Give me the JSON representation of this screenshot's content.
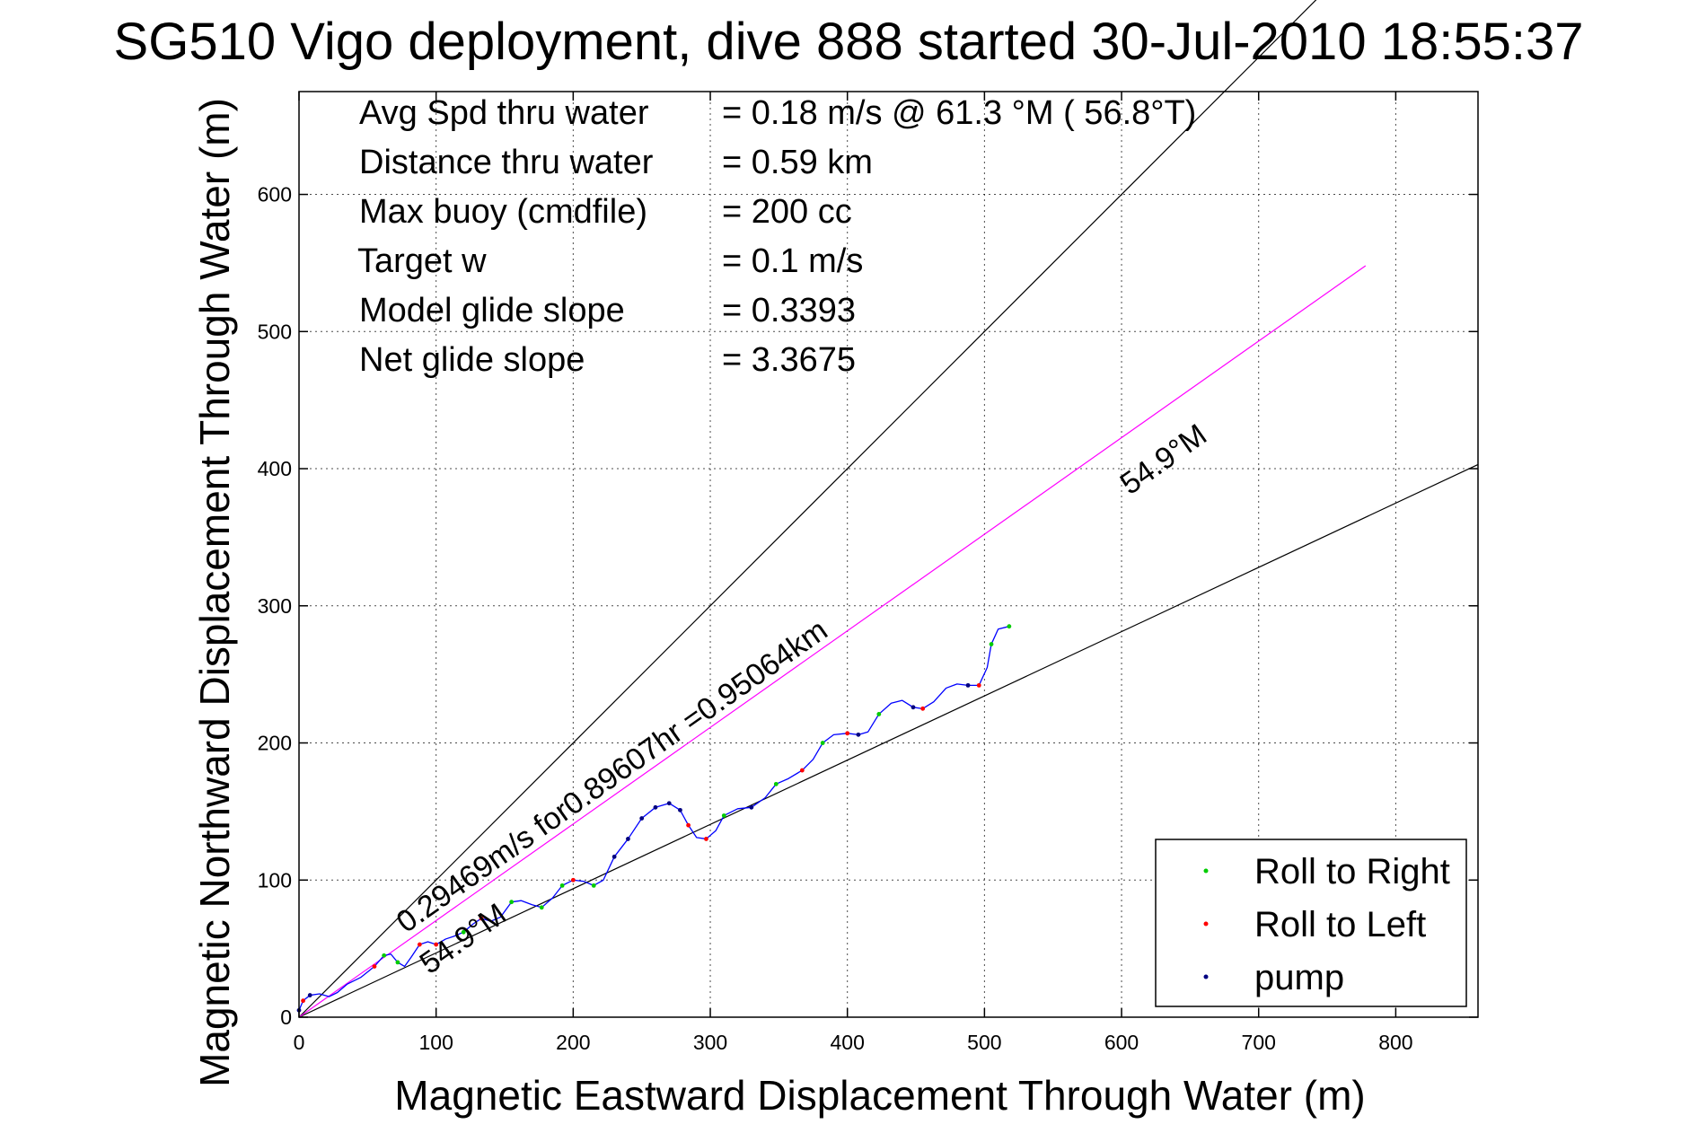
{
  "chart_data": {
    "type": "line",
    "title": "SG510 Vigo deployment, dive 888 started 30-Jul-2010 18:55:37",
    "xlabel": "Magnetic Eastward Displacement Through Water (m)",
    "ylabel": "Magnetic Northward Displacement Through Water (m)",
    "xlim": [
      0,
      860
    ],
    "ylim": [
      0,
      675
    ],
    "xticks": [
      0,
      100,
      200,
      300,
      400,
      500,
      600,
      700,
      800
    ],
    "yticks": [
      0,
      100,
      200,
      300,
      400,
      500,
      600
    ],
    "grid": true,
    "legend_position": "bottom-right",
    "legend": [
      {
        "label": "Roll to Right",
        "color": "#00cc00"
      },
      {
        "label": "Roll to Left",
        "color": "#ff0000"
      },
      {
        "label": "pump",
        "color": "#000080"
      }
    ],
    "stats": [
      {
        "label": "Avg Spd thru water",
        "value": "=  0.18 m/s @  61.3 °M ( 56.8°T)"
      },
      {
        "label": "Distance thru water",
        "value": "=  0.59 km"
      },
      {
        "label": "Max buoy (cmdfile)",
        "value": "= 200 cc"
      },
      {
        "label": "Target w",
        "value": "= 0.1 m/s"
      },
      {
        "label": "Model glide slope",
        "value": "= 0.3393"
      },
      {
        "label": "Net glide slope",
        "value": "= 3.3675"
      }
    ],
    "annotations": {
      "current_label": "0.29469m/s for0.89607hr =0.95064km",
      "heading_upper": "54.9°M",
      "heading_lower": "54.9°M"
    },
    "reference_lines": [
      {
        "name": "upper-bound",
        "color": "#000000",
        "points": [
          [
            0,
            0
          ],
          [
            860,
            860
          ]
        ]
      },
      {
        "name": "lower-bound",
        "color": "#000000",
        "points": [
          [
            0,
            0
          ],
          [
            860,
            403
          ]
        ]
      },
      {
        "name": "current",
        "color": "#ff00ff",
        "points": [
          [
            0,
            0
          ],
          [
            778,
            548
          ]
        ]
      }
    ],
    "track": {
      "color": "#0000ff",
      "points": [
        [
          0,
          5
        ],
        [
          3,
          12
        ],
        [
          8,
          16
        ],
        [
          15,
          17
        ],
        [
          22,
          15
        ],
        [
          28,
          18
        ],
        [
          35,
          24
        ],
        [
          45,
          29
        ],
        [
          55,
          37
        ],
        [
          62,
          45
        ],
        [
          67,
          46
        ],
        [
          72,
          40
        ],
        [
          77,
          37
        ],
        [
          82,
          44
        ],
        [
          88,
          53
        ],
        [
          94,
          55
        ],
        [
          100,
          53
        ],
        [
          107,
          57
        ],
        [
          113,
          59
        ],
        [
          120,
          62
        ],
        [
          127,
          68
        ],
        [
          133,
          72
        ],
        [
          140,
          70
        ],
        [
          147,
          73
        ],
        [
          155,
          84
        ],
        [
          162,
          85
        ],
        [
          170,
          82
        ],
        [
          177,
          80
        ],
        [
          185,
          87
        ],
        [
          192,
          96
        ],
        [
          200,
          100
        ],
        [
          208,
          99
        ],
        [
          215,
          96
        ],
        [
          222,
          100
        ],
        [
          230,
          117
        ],
        [
          240,
          130
        ],
        [
          250,
          145
        ],
        [
          260,
          153
        ],
        [
          270,
          156
        ],
        [
          278,
          151
        ],
        [
          284,
          140
        ],
        [
          290,
          131
        ],
        [
          297,
          130
        ],
        [
          304,
          136
        ],
        [
          310,
          147
        ],
        [
          320,
          152
        ],
        [
          330,
          153
        ],
        [
          340,
          160
        ],
        [
          348,
          170
        ],
        [
          357,
          174
        ],
        [
          367,
          180
        ],
        [
          375,
          188
        ],
        [
          382,
          200
        ],
        [
          390,
          206
        ],
        [
          400,
          207
        ],
        [
          408,
          206
        ],
        [
          415,
          208
        ],
        [
          423,
          221
        ],
        [
          432,
          229
        ],
        [
          440,
          231
        ],
        [
          448,
          226
        ],
        [
          455,
          225
        ],
        [
          463,
          230
        ],
        [
          472,
          240
        ],
        [
          480,
          243
        ],
        [
          488,
          242
        ],
        [
          496,
          242
        ],
        [
          502,
          255
        ],
        [
          505,
          272
        ],
        [
          510,
          283
        ],
        [
          518,
          285
        ]
      ]
    },
    "roll_right_points": [
      [
        62,
        45
      ],
      [
        72,
        40
      ],
      [
        120,
        62
      ],
      [
        155,
        84
      ],
      [
        177,
        80
      ],
      [
        192,
        96
      ],
      [
        215,
        96
      ],
      [
        310,
        147
      ],
      [
        348,
        170
      ],
      [
        382,
        200
      ],
      [
        423,
        221
      ],
      [
        505,
        272
      ],
      [
        518,
        285
      ]
    ],
    "roll_left_points": [
      [
        3,
        12
      ],
      [
        55,
        37
      ],
      [
        88,
        53
      ],
      [
        100,
        53
      ],
      [
        133,
        72
      ],
      [
        200,
        100
      ],
      [
        284,
        140
      ],
      [
        297,
        130
      ],
      [
        367,
        180
      ],
      [
        400,
        207
      ],
      [
        455,
        225
      ],
      [
        496,
        242
      ]
    ],
    "pump_points": [
      [
        0,
        5
      ],
      [
        8,
        16
      ],
      [
        230,
        117
      ],
      [
        240,
        130
      ],
      [
        250,
        145
      ],
      [
        260,
        153
      ],
      [
        270,
        156
      ],
      [
        278,
        151
      ],
      [
        330,
        153
      ],
      [
        408,
        206
      ],
      [
        448,
        226
      ],
      [
        488,
        242
      ]
    ]
  }
}
